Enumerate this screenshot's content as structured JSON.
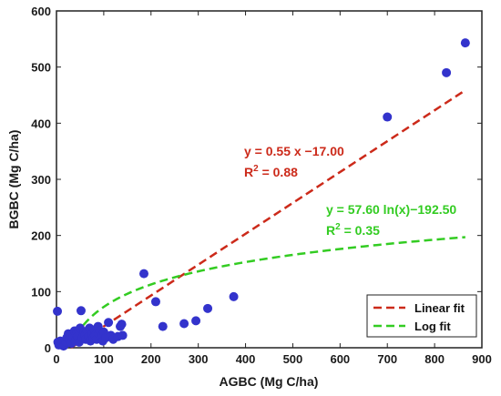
{
  "chart_data": {
    "type": "scatter",
    "xlabel": "AGBC (Mg C/ha)",
    "ylabel": "BGBC (Mg C/ha)",
    "xlim": [
      0,
      900
    ],
    "ylim": [
      0,
      600
    ],
    "xticks": [
      "0",
      "100",
      "200",
      "300",
      "400",
      "500",
      "600",
      "700",
      "800",
      "900"
    ],
    "yticks": [
      "0",
      "100",
      "200",
      "300",
      "400",
      "500",
      "600"
    ],
    "grid": false,
    "legend_position": "bottom-right",
    "point_color": "#3333cc",
    "points": [
      [
        2,
        65
      ],
      [
        3,
        10
      ],
      [
        5,
        5
      ],
      [
        8,
        12
      ],
      [
        12,
        8
      ],
      [
        15,
        3
      ],
      [
        18,
        6
      ],
      [
        20,
        10
      ],
      [
        22,
        18
      ],
      [
        25,
        25
      ],
      [
        28,
        15
      ],
      [
        30,
        22
      ],
      [
        32,
        8
      ],
      [
        35,
        18
      ],
      [
        38,
        30
      ],
      [
        40,
        12
      ],
      [
        42,
        25
      ],
      [
        45,
        20
      ],
      [
        48,
        10
      ],
      [
        50,
        35
      ],
      [
        52,
        66
      ],
      [
        55,
        18
      ],
      [
        58,
        28
      ],
      [
        60,
        22
      ],
      [
        62,
        15
      ],
      [
        65,
        30
      ],
      [
        68,
        20
      ],
      [
        70,
        35
      ],
      [
        72,
        12
      ],
      [
        75,
        25
      ],
      [
        78,
        18
      ],
      [
        80,
        32
      ],
      [
        82,
        22
      ],
      [
        85,
        15
      ],
      [
        88,
        38
      ],
      [
        90,
        25
      ],
      [
        92,
        30
      ],
      [
        95,
        20
      ],
      [
        98,
        12
      ],
      [
        100,
        28
      ],
      [
        105,
        18
      ],
      [
        110,
        45
      ],
      [
        115,
        22
      ],
      [
        120,
        15
      ],
      [
        130,
        20
      ],
      [
        135,
        38
      ],
      [
        138,
        42
      ],
      [
        140,
        22
      ],
      [
        185,
        132
      ],
      [
        210,
        82
      ],
      [
        225,
        38
      ],
      [
        270,
        43
      ],
      [
        295,
        48
      ],
      [
        320,
        70
      ],
      [
        375,
        91
      ],
      [
        700,
        411
      ],
      [
        825,
        490
      ],
      [
        865,
        543
      ]
    ],
    "series": [
      {
        "name": "Linear fit",
        "color": "#cc2a1a",
        "slope": 0.55,
        "intercept": -17.0,
        "x_range": [
          31,
          865
        ]
      },
      {
        "name": "Log fit",
        "color": "#33cc22",
        "a": 57.6,
        "b": -192.5,
        "x_range": [
          29,
          865
        ]
      }
    ],
    "annotations": {
      "linear_eq": "y = 0.55 x −17.00",
      "linear_r2_prefix": "R",
      "linear_r2_sup": "2",
      "linear_r2_value": " = 0.88",
      "log_eq": "y = 57.60 ln(x)−192.50",
      "log_r2_prefix": "R",
      "log_r2_sup": "2",
      "log_r2_value": " = 0.35"
    }
  }
}
